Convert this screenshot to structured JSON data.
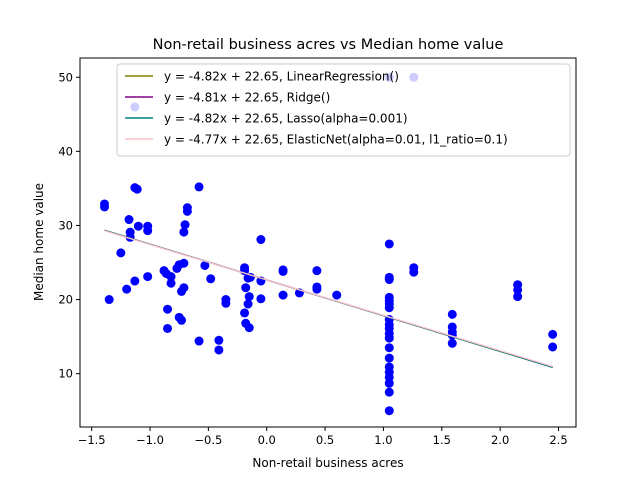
{
  "chart_data": {
    "type": "scatter",
    "title": "Non-retail business acres vs Median home value",
    "xlabel": "Non-retail business acres",
    "ylabel": "Median home value",
    "xlim": [
      -1.6,
      2.65
    ],
    "ylim": [
      2.8,
      52.6
    ],
    "xticks": [
      -1.5,
      -1.0,
      -0.5,
      0.0,
      0.5,
      1.0,
      1.5,
      2.0,
      2.5
    ],
    "xtick_labels": [
      "−1.5",
      "−1.0",
      "−0.5",
      "0.0",
      "0.5",
      "1.0",
      "1.5",
      "2.0",
      "2.5"
    ],
    "yticks": [
      10,
      20,
      30,
      40,
      50
    ],
    "ytick_labels": [
      "10",
      "20",
      "30",
      "40",
      "50"
    ],
    "grid": false,
    "legend_position": "top-right",
    "scatter": {
      "color": "#0000ff",
      "points": [
        [
          -1.39,
          32.9
        ],
        [
          -1.39,
          32.5
        ],
        [
          -1.35,
          20.0
        ],
        [
          -1.25,
          26.3
        ],
        [
          -1.2,
          21.4
        ],
        [
          -1.18,
          30.8
        ],
        [
          -1.17,
          28.4
        ],
        [
          -1.17,
          29.1
        ],
        [
          -1.13,
          22.5
        ],
        [
          -1.13,
          35.1
        ],
        [
          -1.11,
          34.9
        ],
        [
          -1.1,
          29.9
        ],
        [
          -1.02,
          29.9
        ],
        [
          -1.02,
          29.3
        ],
        [
          -1.02,
          23.1
        ],
        [
          -0.88,
          23.9
        ],
        [
          -0.86,
          23.5
        ],
        [
          -0.85,
          18.7
        ],
        [
          -0.85,
          16.1
        ],
        [
          -0.82,
          22.2
        ],
        [
          -0.82,
          23.1
        ],
        [
          -0.77,
          24.2
        ],
        [
          -0.75,
          24.7
        ],
        [
          -0.75,
          17.6
        ],
        [
          -0.73,
          17.2
        ],
        [
          -0.73,
          21.1
        ],
        [
          -0.71,
          24.9
        ],
        [
          -0.71,
          21.6
        ],
        [
          -0.71,
          29.1
        ],
        [
          -0.7,
          30.1
        ],
        [
          -0.68,
          31.9
        ],
        [
          -0.68,
          32.4
        ],
        [
          -0.58,
          35.2
        ],
        [
          -0.58,
          14.4
        ],
        [
          -0.53,
          24.6
        ],
        [
          -0.48,
          22.8
        ],
        [
          -0.41,
          14.5
        ],
        [
          -0.41,
          13.2
        ],
        [
          -0.35,
          20.0
        ],
        [
          -0.35,
          19.5
        ],
        [
          -0.19,
          24.3
        ],
        [
          -0.18,
          21.6
        ],
        [
          -0.19,
          23.9
        ],
        [
          -0.19,
          18.2
        ],
        [
          -0.18,
          16.8
        ],
        [
          -0.16,
          22.9
        ],
        [
          -0.16,
          19.4
        ],
        [
          -0.15,
          20.4
        ],
        [
          -0.15,
          16.2
        ],
        [
          -0.14,
          23.0
        ],
        [
          -0.05,
          22.5
        ],
        [
          -0.05,
          28.1
        ],
        [
          -0.05,
          20.1
        ],
        [
          0.14,
          24.0
        ],
        [
          0.14,
          23.8
        ],
        [
          0.14,
          20.6
        ],
        [
          0.28,
          20.9
        ],
        [
          0.43,
          21.7
        ],
        [
          0.43,
          21.4
        ],
        [
          0.43,
          23.9
        ],
        [
          0.6,
          20.6
        ],
        [
          1.05,
          27.5
        ],
        [
          1.05,
          23.0
        ],
        [
          1.05,
          22.7
        ],
        [
          1.05,
          20.3
        ],
        [
          1.05,
          19.8
        ],
        [
          1.05,
          19.4
        ],
        [
          1.05,
          18.9
        ],
        [
          1.05,
          17.3
        ],
        [
          1.05,
          16.6
        ],
        [
          1.05,
          16.1
        ],
        [
          1.05,
          15.4
        ],
        [
          1.05,
          14.8
        ],
        [
          1.05,
          13.5
        ],
        [
          1.05,
          12.1
        ],
        [
          1.05,
          10.9
        ],
        [
          1.05,
          10.2
        ],
        [
          1.05,
          9.5
        ],
        [
          1.05,
          8.7
        ],
        [
          1.05,
          7.5
        ],
        [
          1.05,
          5.0
        ],
        [
          1.26,
          24.3
        ],
        [
          1.26,
          23.7
        ],
        [
          1.59,
          18.0
        ],
        [
          1.59,
          16.3
        ],
        [
          1.59,
          15.6
        ],
        [
          1.59,
          15.2
        ],
        [
          1.59,
          14.1
        ],
        [
          2.15,
          22.0
        ],
        [
          2.15,
          21.3
        ],
        [
          2.15,
          20.4
        ],
        [
          2.45,
          15.3
        ],
        [
          2.45,
          13.6
        ],
        [
          -1.13,
          46.0
        ],
        [
          1.05,
          50.0
        ],
        [
          1.26,
          50.0
        ]
      ]
    },
    "series": [
      {
        "name": "y = -4.82x + 22.65, LinearRegression()",
        "slope": -4.82,
        "intercept": 22.65,
        "color": "#808000"
      },
      {
        "name": "y = -4.81x + 22.65, Ridge()",
        "slope": -4.81,
        "intercept": 22.65,
        "color": "#800080"
      },
      {
        "name": "y = -4.82x + 22.65, Lasso(alpha=0.001)",
        "slope": -4.82,
        "intercept": 22.65,
        "color": "#008080"
      },
      {
        "name": "y = -4.77x + 22.65, ElasticNet(alpha=0.01, l1_ratio=0.1)",
        "slope": -4.77,
        "intercept": 22.65,
        "color": "#ffc0cb"
      }
    ],
    "line_x_range": [
      -1.39,
      2.45
    ]
  }
}
